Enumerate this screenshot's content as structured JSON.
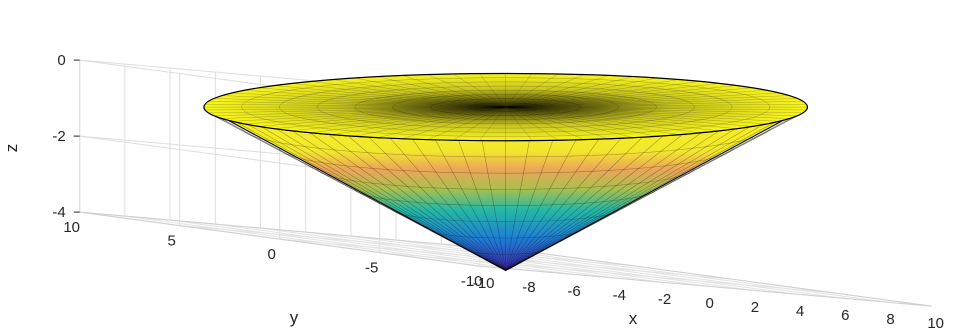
{
  "chart_data": {
    "type": "surface",
    "title": "",
    "xlabel": "x",
    "ylabel": "y",
    "zlabel": "z",
    "xlim": [
      -10,
      10
    ],
    "ylim": [
      -10,
      10
    ],
    "zlim": [
      -4,
      0
    ],
    "x_ticks": [
      -10,
      -8,
      -6,
      -4,
      -2,
      0,
      2,
      4,
      6,
      8,
      10
    ],
    "y_ticks": [
      -10,
      -5,
      0,
      5,
      10
    ],
    "z_ticks": [
      -4,
      -2,
      0
    ],
    "x_tick_labels": [
      "-10",
      "-8",
      "-6",
      "-4",
      "-2",
      "0",
      "2",
      "4",
      "6",
      "8",
      "10"
    ],
    "y_tick_labels": [
      "-10",
      "-5",
      "0",
      "5",
      "10"
    ],
    "z_tick_labels": [
      "-4",
      "-2",
      "0"
    ],
    "grid": true,
    "surface": {
      "shape": "inverted cone",
      "radius": 10,
      "apex": [
        0,
        0,
        -4.3
      ],
      "rim_z": 0,
      "colormap": "parula",
      "edge_color": "#000000",
      "mesh": "triangular"
    }
  }
}
